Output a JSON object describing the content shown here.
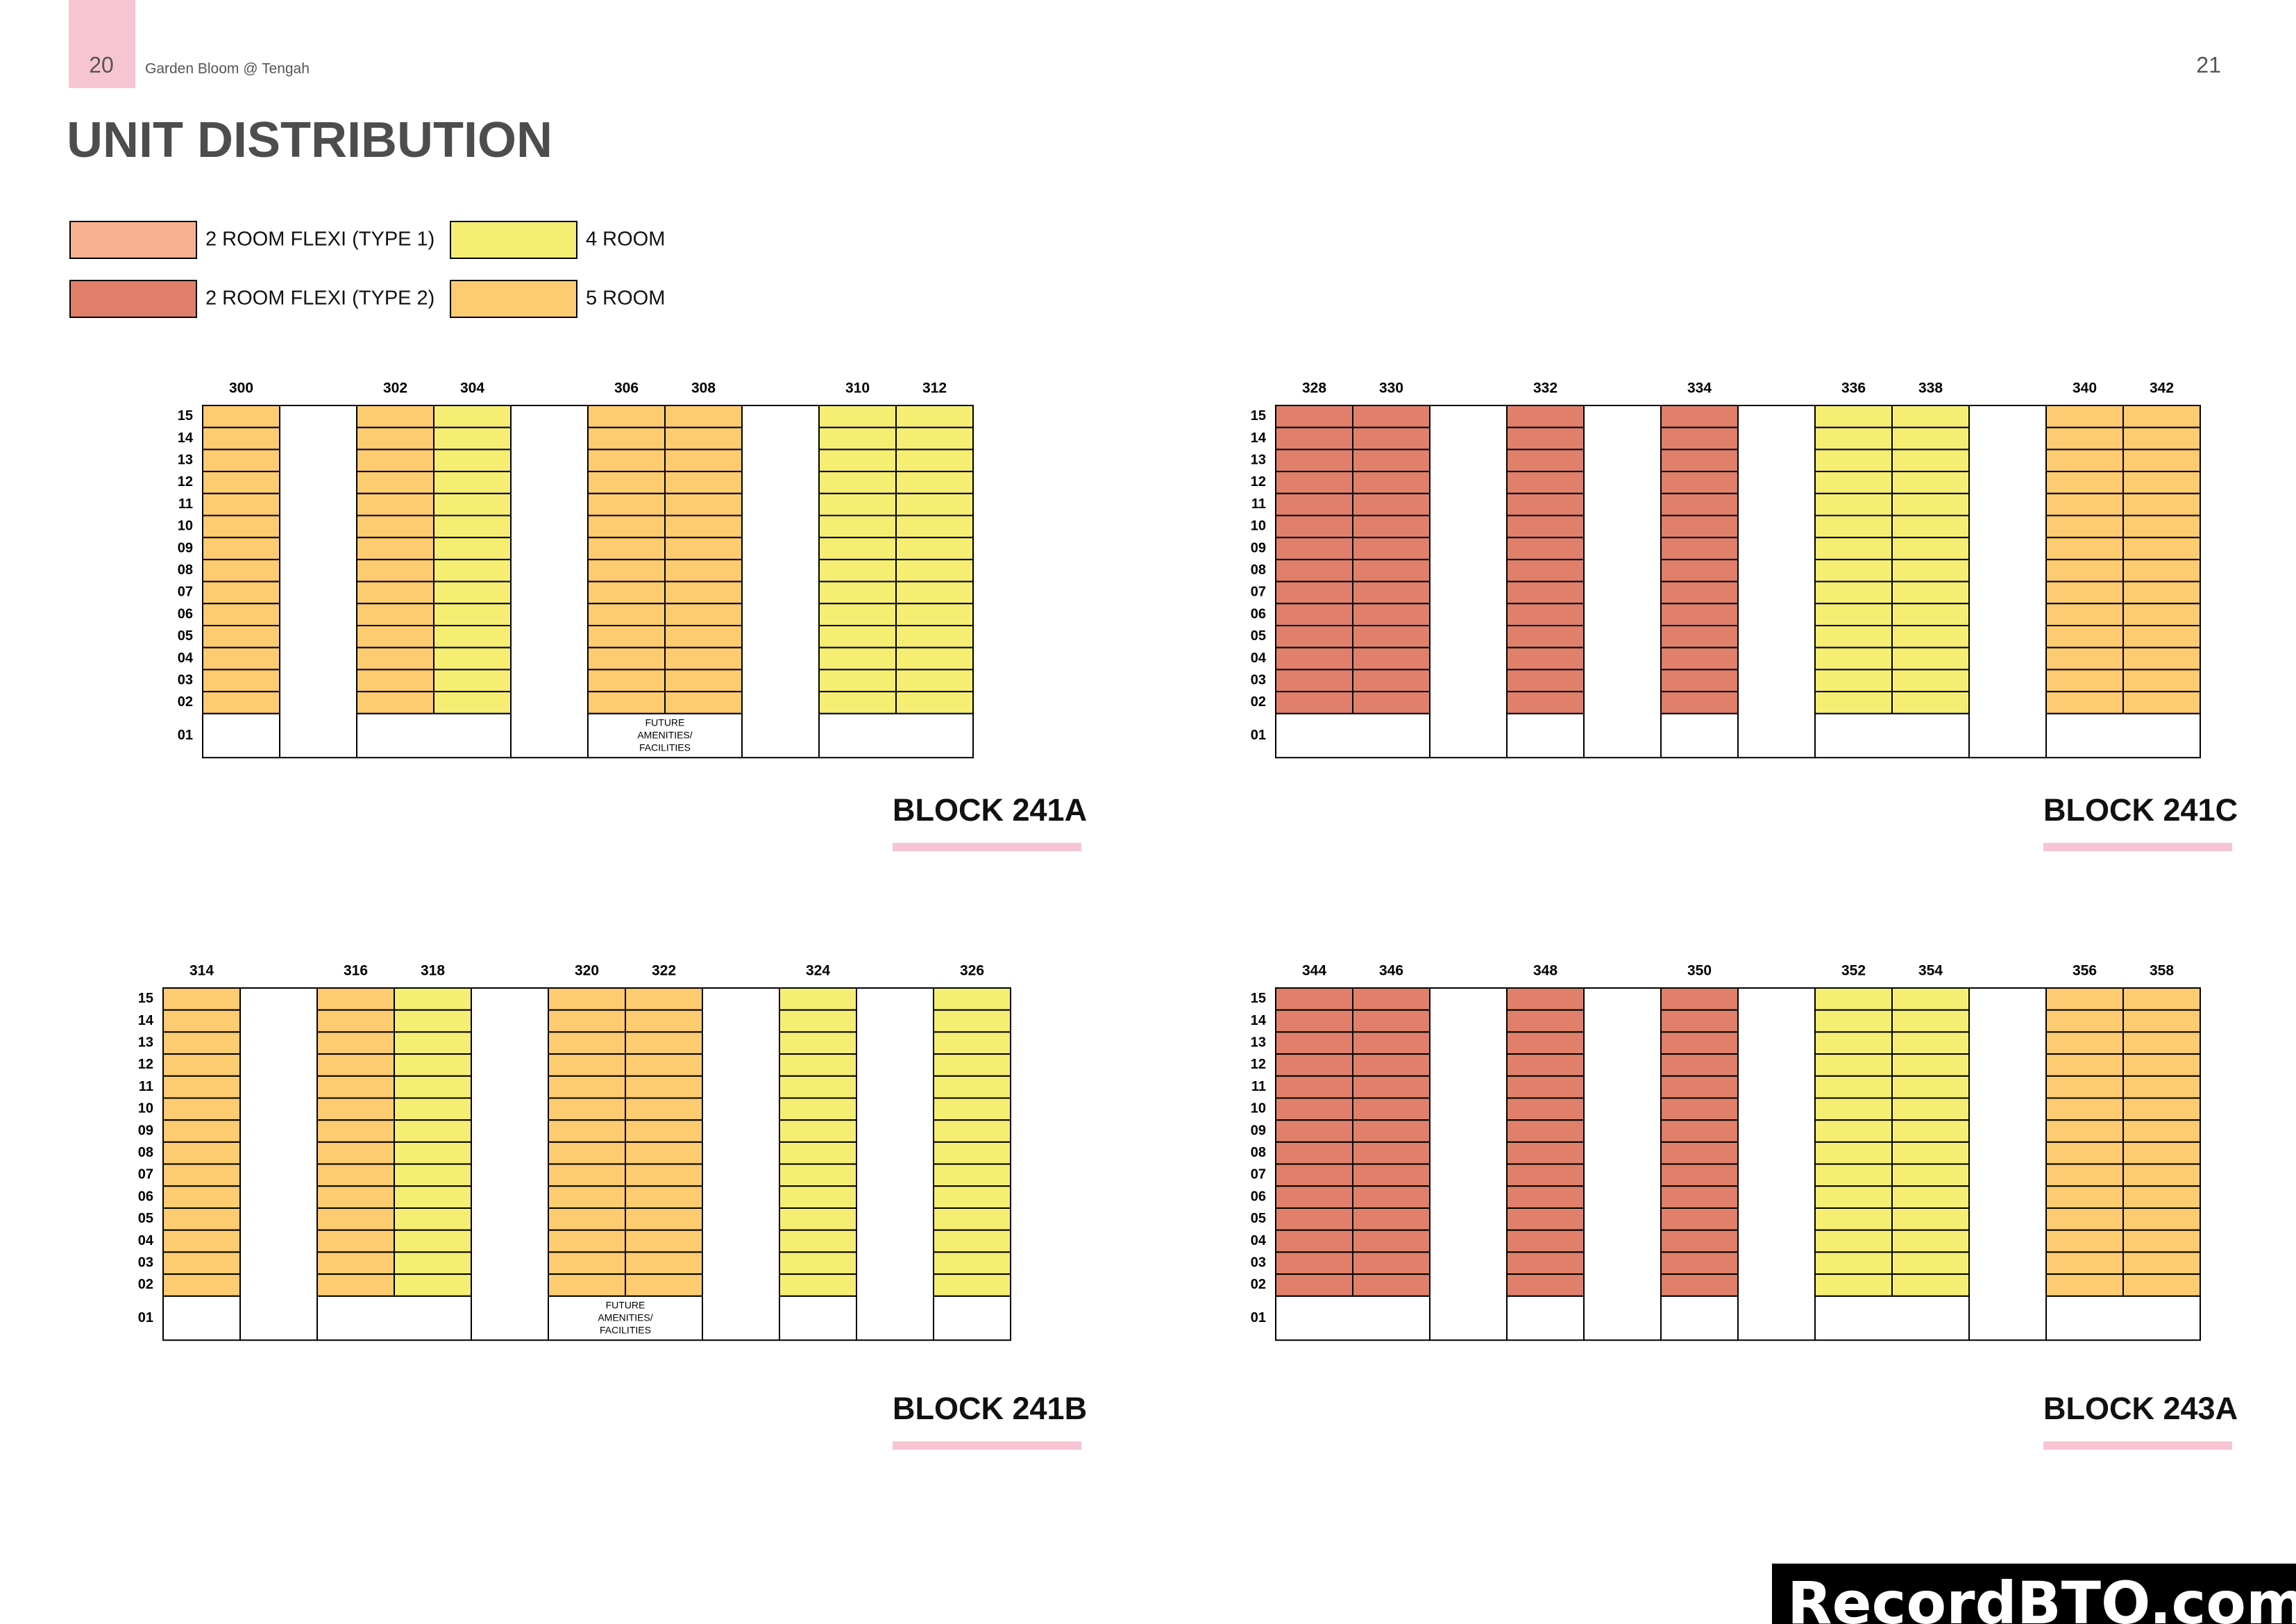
{
  "header": {
    "page_left": "20",
    "doc_title": "Garden Bloom @ Tengah",
    "page_right": "21"
  },
  "title": "UNIT DISTRIBUTION",
  "legend": [
    {
      "label": "2  ROOM FLEXI (TYPE 1)",
      "color": "#f8b18f"
    },
    {
      "label": "2  ROOM FLEXI (TYPE 2)",
      "color": "#e0806b"
    },
    {
      "label": "4 ROOM",
      "color": "#f6ee73"
    },
    {
      "label": "5 ROOM",
      "color": "#fdcb70"
    }
  ],
  "floors": [
    "15",
    "14",
    "13",
    "12",
    "11",
    "10",
    "09",
    "08",
    "07",
    "06",
    "05",
    "04",
    "03",
    "02",
    "01"
  ],
  "blocks": [
    {
      "name": "BLOCK 241A",
      "columns": [
        {
          "unit": "300",
          "type": 3
        },
        null,
        {
          "unit": "302",
          "type": 3
        },
        {
          "unit": "304",
          "type": 2
        },
        null,
        {
          "unit": "306",
          "type": 3,
          "ground": [
            "FUTURE",
            "AMENITIES/",
            "FACILITIES"
          ]
        },
        {
          "unit": "308",
          "type": 3
        },
        null,
        {
          "unit": "310",
          "type": 2
        },
        {
          "unit": "312",
          "type": 2
        }
      ]
    },
    {
      "name": "BLOCK 241C",
      "columns": [
        {
          "unit": "328",
          "type": 1
        },
        {
          "unit": "330",
          "type": 1
        },
        null,
        {
          "unit": "332",
          "type": 1
        },
        null,
        {
          "unit": "334",
          "type": 1
        },
        null,
        {
          "unit": "336",
          "type": 2
        },
        {
          "unit": "338",
          "type": 2
        },
        null,
        {
          "unit": "340",
          "type": 3
        },
        {
          "unit": "342",
          "type": 3
        }
      ]
    },
    {
      "name": "BLOCK 241B",
      "columns": [
        {
          "unit": "314",
          "type": 3
        },
        null,
        {
          "unit": "316",
          "type": 3
        },
        {
          "unit": "318",
          "type": 2
        },
        null,
        {
          "unit": "320",
          "type": 3,
          "ground": [
            "FUTURE",
            "AMENITIES/",
            "FACILITIES"
          ]
        },
        {
          "unit": "322",
          "type": 3
        },
        null,
        {
          "unit": "324",
          "type": 2
        },
        null,
        {
          "unit": "326",
          "type": 2
        }
      ]
    },
    {
      "name": "BLOCK 243A",
      "columns": [
        {
          "unit": "344",
          "type": 1
        },
        {
          "unit": "346",
          "type": 1
        },
        null,
        {
          "unit": "348",
          "type": 1
        },
        null,
        {
          "unit": "350",
          "type": 1
        },
        null,
        {
          "unit": "352",
          "type": 2
        },
        {
          "unit": "354",
          "type": 2
        },
        null,
        {
          "unit": "356",
          "type": 3
        },
        {
          "unit": "358",
          "type": 3
        }
      ]
    }
  ],
  "watermark": "RecordBTO.com"
}
